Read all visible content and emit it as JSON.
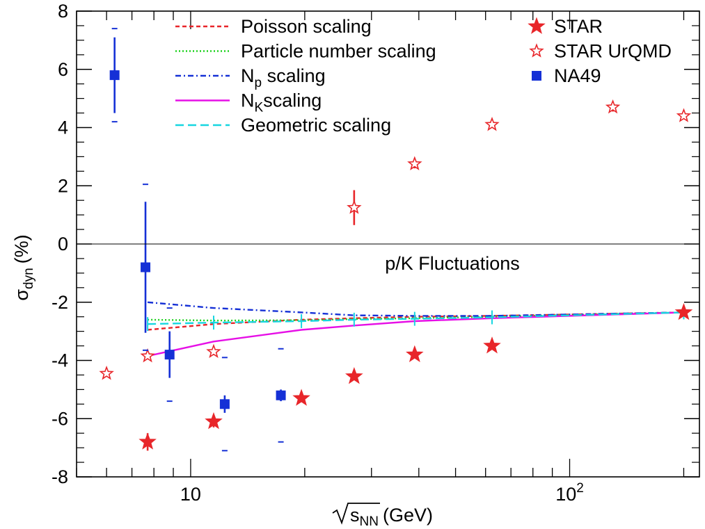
{
  "chart_data": {
    "type": "scatter",
    "annotation": "p/K Fluctuations",
    "ylabel": {
      "main": "σ",
      "sub": "dyn",
      "unit": "(%)"
    },
    "xlabel": {
      "main": "s",
      "sub": "NN",
      "unit": "(GeV)"
    },
    "xscale": "log",
    "xlim": [
      5,
      220
    ],
    "ylim": [
      -8,
      8
    ],
    "grid": false,
    "legend_position": "top",
    "y_ticks": [
      -8,
      -6,
      -4,
      -2,
      0,
      2,
      4,
      6,
      8
    ],
    "y_tick_labels": [
      "-8",
      "-6",
      "-4",
      "-2",
      "0",
      "2",
      "4",
      "6",
      "8"
    ],
    "x_major_ticks": [
      {
        "value": 10,
        "base": "10",
        "exp": ""
      },
      {
        "value": 100,
        "base": "10",
        "exp": "2"
      }
    ],
    "legend_lines": [
      {
        "name": "Poisson scaling",
        "color": "#e8262a",
        "dash": "6,4"
      },
      {
        "name": "Particle number scaling",
        "color": "#1fd21f",
        "dash": "2,3"
      },
      {
        "name": "N",
        "name_sub": "p",
        "name_rest": " scaling",
        "color": "#1530d6",
        "dash": "8,4,2,4"
      },
      {
        "name": "N",
        "name_sub": "K",
        "name_rest": "scaling",
        "color": "#e60fe6",
        "dash": ""
      },
      {
        "name": "Geometric scaling",
        "color": "#17d6e0",
        "dash": "12,6"
      }
    ],
    "legend_markers": [
      {
        "name": "STAR",
        "marker": "filled-star",
        "color": "#e8262a"
      },
      {
        "name": "STAR UrQMD",
        "marker": "open-star",
        "color": "#e8262a"
      },
      {
        "name": "NA49",
        "marker": "filled-square",
        "color": "#1530d6"
      }
    ],
    "series": [
      {
        "name": "STAR",
        "marker": "filled-star",
        "color": "#e8262a",
        "points": [
          {
            "x": 7.7,
            "y": -6.8,
            "err": 0.3
          },
          {
            "x": 11.5,
            "y": -6.1,
            "err": 0.2
          },
          {
            "x": 19.6,
            "y": -5.3,
            "err": 0.1
          },
          {
            "x": 27,
            "y": -4.55,
            "err": 0.1
          },
          {
            "x": 39,
            "y": -3.8,
            "err": 0.1
          },
          {
            "x": 62.4,
            "y": -3.5,
            "err": 0.1
          },
          {
            "x": 200,
            "y": -2.35,
            "err": 0.1
          }
        ]
      },
      {
        "name": "STAR UrQMD",
        "marker": "open-star",
        "color": "#e8262a",
        "points": [
          {
            "x": 6.0,
            "y": -4.45,
            "err": 0
          },
          {
            "x": 7.7,
            "y": -3.85,
            "err": 0
          },
          {
            "x": 11.5,
            "y": -3.7,
            "err": 0
          },
          {
            "x": 27,
            "y": 1.25,
            "err": 0.6
          },
          {
            "x": 39,
            "y": 2.75,
            "err": 0.15
          },
          {
            "x": 62.4,
            "y": 4.1,
            "err": 0.1
          },
          {
            "x": 130,
            "y": 4.7,
            "err": 0.15
          },
          {
            "x": 200,
            "y": 4.4,
            "err": 0.1
          }
        ]
      },
      {
        "name": "NA49",
        "marker": "filled-square",
        "color": "#1530d6",
        "points": [
          {
            "x": 6.3,
            "y": 5.8,
            "err": 1.3,
            "sys": 1.6
          },
          {
            "x": 7.6,
            "y": -0.8,
            "err": 2.25,
            "sys": 2.85
          },
          {
            "x": 8.8,
            "y": -3.8,
            "err": 0.8,
            "sys": 1.6
          },
          {
            "x": 12.3,
            "y": -5.5,
            "err": 0.3,
            "sys": 1.6
          },
          {
            "x": 17.3,
            "y": -5.2,
            "err": 0.2,
            "sys": 1.6
          }
        ]
      }
    ],
    "curves": [
      {
        "name": "Poisson scaling",
        "color": "#e8262a",
        "dash": "6,4",
        "x": [
          7.7,
          11.5,
          19.6,
          27,
          39,
          62.4,
          200
        ],
        "y": [
          -2.95,
          -2.75,
          -2.6,
          -2.55,
          -2.5,
          -2.47,
          -2.35
        ]
      },
      {
        "name": "Particle number scaling",
        "color": "#1fd21f",
        "dash": "2,3",
        "x": [
          7.7,
          11.5,
          19.6,
          27,
          39,
          62.4,
          200
        ],
        "y": [
          -2.6,
          -2.63,
          -2.62,
          -2.58,
          -2.55,
          -2.5,
          -2.35
        ]
      },
      {
        "name": "Np scaling",
        "color": "#1530d6",
        "dash": "8,4,2,4",
        "x": [
          7.7,
          11.5,
          19.6,
          27,
          39,
          62.4,
          200
        ],
        "y": [
          -2.0,
          -2.2,
          -2.35,
          -2.45,
          -2.47,
          -2.47,
          -2.35
        ]
      },
      {
        "name": "NK scaling",
        "color": "#e60fe6",
        "dash": "",
        "x": [
          7.7,
          11.5,
          19.6,
          27,
          39,
          62.4,
          200
        ],
        "y": [
          -3.85,
          -3.35,
          -2.95,
          -2.8,
          -2.65,
          -2.55,
          -2.35
        ]
      },
      {
        "name": "Geometric scaling",
        "color": "#17d6e0",
        "dash": "12,6",
        "x": [
          7.7,
          11.5,
          19.6,
          27,
          39,
          62.4,
          200
        ],
        "y": [
          -2.75,
          -2.7,
          -2.65,
          -2.6,
          -2.57,
          -2.52,
          -2.35
        ]
      }
    ]
  }
}
